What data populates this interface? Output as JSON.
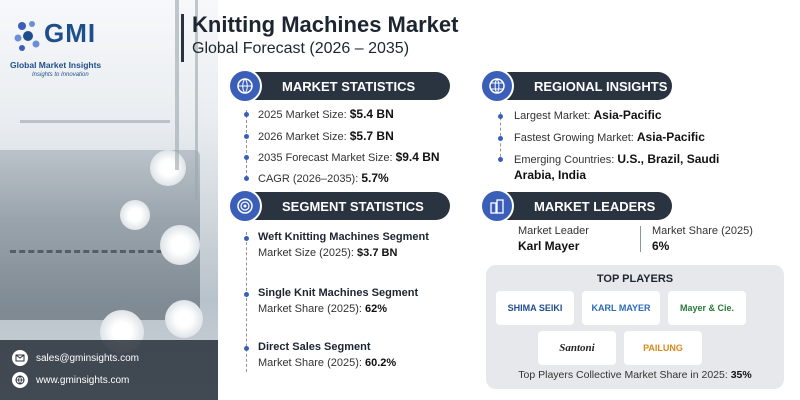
{
  "logo": {
    "mark_text": "GMI",
    "company": "Global Market Insights",
    "tagline": "Insights to Innovation"
  },
  "header": {
    "title": "Knitting Machines Market",
    "subtitle": "Global Forecast (2026 – 2035)"
  },
  "market_statistics": {
    "heading": "MARKET STATISTICS",
    "icon": "globe-chart-icon",
    "items": [
      {
        "label": "2025 Market Size:",
        "value": "$5.4 BN"
      },
      {
        "label": "2026 Market Size:",
        "value": "$5.7 BN"
      },
      {
        "label": "2035 Forecast Market Size:",
        "value": "$9.4 BN"
      },
      {
        "label": "CAGR (2026–2035):",
        "value": "5.7%"
      }
    ]
  },
  "regional_insights": {
    "heading": "REGIONAL INSIGHTS",
    "icon": "globe-icon",
    "items": [
      {
        "label": "Largest Market:",
        "value": "Asia-Pacific"
      },
      {
        "label": "Fastest Growing Market:",
        "value": "Asia-Pacific"
      },
      {
        "label": "Emerging Countries:",
        "value": "U.S., Brazil, Saudi",
        "value2": "Arabia, India"
      }
    ]
  },
  "segment_statistics": {
    "heading": "SEGMENT STATISTICS",
    "icon": "target-icon",
    "items": [
      {
        "title": "Weft Knitting Machines Segment",
        "label": "Market Size (2025):",
        "value": "$3.7 BN"
      },
      {
        "title": "Single Knit Machines Segment",
        "label": "Market Share (2025):",
        "value": "62%"
      },
      {
        "title": "Direct Sales Segment",
        "label": "Market Share (2025):",
        "value": "60.2%"
      }
    ]
  },
  "market_leaders": {
    "heading": "MARKET LEADERS",
    "icon": "building-icon",
    "leader_label": "Market Leader",
    "leader_value": "Karl Mayer",
    "share_label": "Market Share (2025)",
    "share_value": "6%"
  },
  "top_players": {
    "heading": "TOP PLAYERS",
    "logos": [
      "SHIMA SEIKI",
      "KARL MAYER",
      "Mayer & Cie.",
      "Santoni",
      "PAILUNG"
    ],
    "footer_label": "Top Players Collective Market Share in 2025:",
    "footer_value": "35%"
  },
  "contact": {
    "email": "sales@gminsights.com",
    "website": "www.gminsights.com"
  },
  "colors": {
    "dark": "#2a3340",
    "accent": "#3b5fb8",
    "brand": "#1f4e8c"
  }
}
